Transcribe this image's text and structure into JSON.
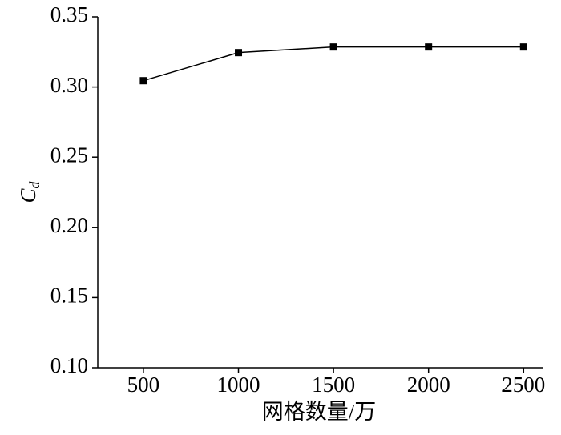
{
  "chart_data": {
    "type": "line",
    "x": [
      500,
      1000,
      1500,
      2000,
      2500
    ],
    "series": [
      {
        "color": "#000000",
        "values": [
          0.3045,
          0.3245,
          0.3285,
          0.3285,
          0.3285
        ]
      }
    ],
    "xlim": [
      260,
      2600
    ],
    "xticks": [
      500,
      1000,
      1500,
      2000,
      2500
    ],
    "ylim": [
      0.1,
      0.35
    ],
    "yticks": [
      {
        "value": 0.1,
        "label": "0.10"
      },
      {
        "value": 0.15,
        "label": "0.15"
      },
      {
        "value": 0.2,
        "label": "0.20"
      },
      {
        "value": 0.25,
        "label": "0.25"
      },
      {
        "value": 0.3,
        "label": "0.30"
      },
      {
        "value": 0.35,
        "label": "0.35"
      }
    ],
    "xlabel": "网格数量/万",
    "ylabel": "C",
    "ylabel_subscript": "d"
  }
}
